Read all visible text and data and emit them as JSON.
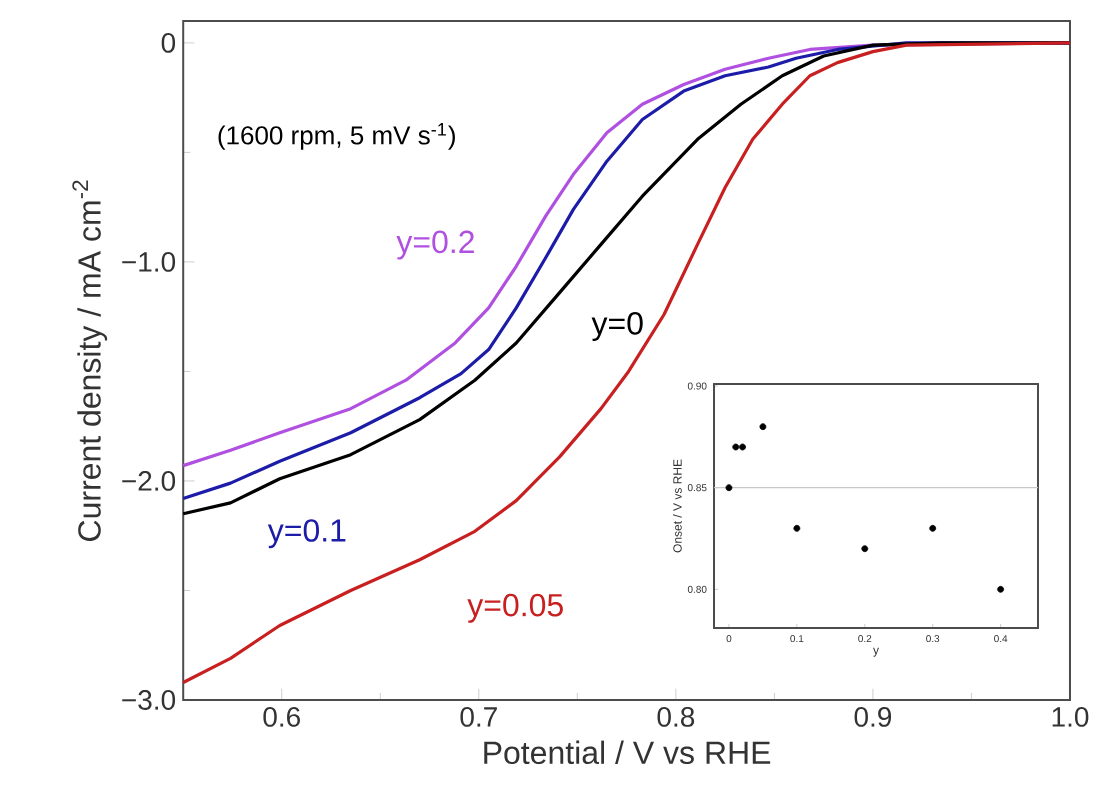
{
  "chart_data": [
    {
      "type": "line",
      "xlabel": "Potential / V vs RHE",
      "ylabel": "Current density / mA cm$^{-2}$",
      "annotations": [
        "(1600 rpm, 5 mV s$^{-1}$)"
      ],
      "xlim": [
        0.55,
        1.0
      ],
      "ylim": [
        -3.0,
        0.1
      ],
      "xticks": [
        0.6,
        0.7,
        0.8,
        0.9,
        {
          "value": 1.0,
          "label": "1.0"
        },
        {
          "value": 0.65,
          "label": null
        },
        {
          "value": 0.75,
          "label": null
        },
        {
          "value": 0.85,
          "label": null
        },
        {
          "value": 0.95,
          "label": null
        }
      ],
      "yticks": [
        0,
        {
          "value": -1.0,
          "label": "−1.0"
        },
        {
          "value": -2.0,
          "label": "−2.0"
        },
        {
          "value": -3.0,
          "label": "−3.0"
        },
        {
          "value": -0.5,
          "label": null
        },
        {
          "value": -1.5,
          "label": null
        },
        {
          "value": -2.5,
          "label": null
        }
      ],
      "series": [
        {
          "name": "y=0.2",
          "color": "#b050e0",
          "x": [
            0.55,
            0.574,
            0.599,
            0.635,
            0.663,
            0.688,
            0.705,
            0.719,
            0.734,
            0.748,
            0.765,
            0.783,
            0.804,
            0.825,
            0.847,
            0.868,
            0.9,
            1.0
          ],
          "values": [
            -1.93,
            -1.86,
            -1.78,
            -1.67,
            -1.54,
            -1.37,
            -1.21,
            -1.02,
            -0.79,
            -0.6,
            -0.41,
            -0.28,
            -0.19,
            -0.12,
            -0.07,
            -0.03,
            -0.01,
            0
          ]
        },
        {
          "name": "y=0.1",
          "color": "#1c1ca8",
          "x": [
            0.55,
            0.574,
            0.599,
            0.635,
            0.67,
            0.691,
            0.705,
            0.719,
            0.734,
            0.748,
            0.765,
            0.783,
            0.804,
            0.825,
            0.847,
            0.861,
            0.882,
            0.917,
            1.0
          ],
          "values": [
            -2.08,
            -2.01,
            -1.91,
            -1.78,
            -1.62,
            -1.51,
            -1.4,
            -1.21,
            -0.98,
            -0.76,
            -0.54,
            -0.35,
            -0.22,
            -0.15,
            -0.11,
            -0.07,
            -0.03,
            0,
            0
          ]
        },
        {
          "name": "y=0",
          "color": "#000000",
          "x": [
            0.55,
            0.574,
            0.599,
            0.635,
            0.67,
            0.698,
            0.719,
            0.741,
            0.762,
            0.783,
            0.811,
            0.833,
            0.854,
            0.875,
            0.9,
            0.935,
            1.0
          ],
          "values": [
            -2.15,
            -2.1,
            -1.99,
            -1.88,
            -1.72,
            -1.54,
            -1.37,
            -1.14,
            -0.92,
            -0.7,
            -0.44,
            -0.28,
            -0.15,
            -0.06,
            -0.01,
            0,
            0
          ]
        },
        {
          "name": "y=0.05",
          "color": "#c82020",
          "x": [
            0.55,
            0.574,
            0.599,
            0.635,
            0.67,
            0.698,
            0.719,
            0.741,
            0.762,
            0.776,
            0.794,
            0.811,
            0.825,
            0.839,
            0.854,
            0.868,
            0.882,
            0.9,
            0.917,
            1.0
          ],
          "values": [
            -2.92,
            -2.81,
            -2.66,
            -2.5,
            -2.36,
            -2.23,
            -2.09,
            -1.89,
            -1.67,
            -1.5,
            -1.24,
            -0.92,
            -0.66,
            -0.44,
            -0.28,
            -0.15,
            -0.09,
            -0.04,
            -0.01,
            0
          ]
        }
      ]
    },
    {
      "type": "scatter",
      "xlabel": "y",
      "ylabel": "Onset / V vs RHE",
      "xlim": [
        -0.022,
        0.455
      ],
      "ylim": [
        0.781,
        0.901
      ],
      "xticks": [
        0,
        0.1,
        0.2,
        0.3,
        0.4
      ],
      "yticks": [
        {
          "value": 0.8,
          "label": "0.80"
        },
        {
          "value": 0.85,
          "label": "0.85"
        },
        {
          "value": 0.9,
          "label": "0.90"
        }
      ],
      "marker": "circle",
      "ref_lines": [
        {
          "axis": "y",
          "value": 0.85,
          "color": "#c8c8c8"
        }
      ],
      "series": [
        {
          "color": "#000000",
          "x": [
            0,
            0.01,
            0.02,
            0.05,
            0.1,
            0.2,
            0.3,
            0.4
          ],
          "values": [
            0.85,
            0.87,
            0.87,
            0.88,
            0.83,
            0.82,
            0.83,
            0.8
          ]
        }
      ]
    }
  ]
}
